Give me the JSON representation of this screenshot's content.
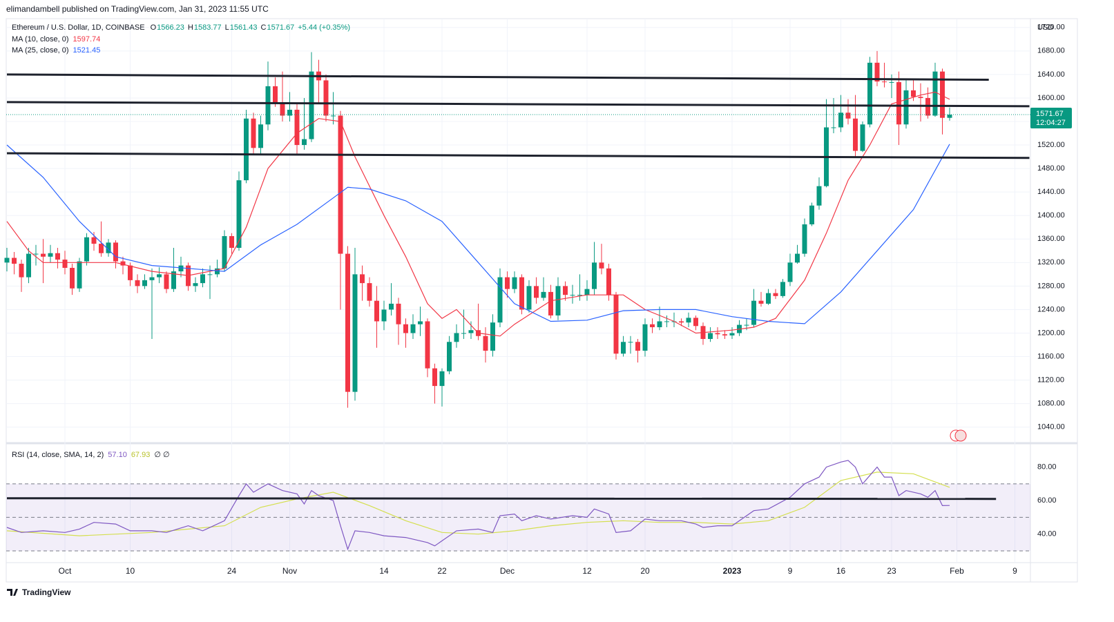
{
  "chart_data": {
    "type": "candlestick",
    "header": "elimandambell published on TradingView.com, Jan 31, 2023 11:55 UTC",
    "title": "Ethereum / U.S. Dollar, 1D, COINBASE",
    "ohlc_letters": [
      "O",
      "H",
      "L",
      "C"
    ],
    "change": "+5.44 (+0.35%)",
    "up_color": "#089981",
    "down_color": "#f23645",
    "open": [
      1320,
      1328,
      1318,
      1295,
      1335,
      1335,
      1330,
      1336,
      1325,
      1311,
      1276,
      1322,
      1363,
      1352,
      1336,
      1354,
      1322,
      1315,
      1290,
      1280,
      1290,
      1295,
      1300,
      1275,
      1305,
      1315,
      1280,
      1285,
      1300,
      1300,
      1310,
      1365,
      1345,
      1460,
      1565,
      1515,
      1555,
      1620,
      1590,
      1570,
      1580,
      1520,
      1530,
      1645,
      1630,
      1570,
      1570,
      1335,
      1100,
      1300,
      1285,
      1255,
      1220,
      1240,
      1250,
      1215,
      1200,
      1215,
      1220,
      1140,
      1110,
      1135,
      1185,
      1200,
      1200,
      1205,
      1195,
      1170,
      1218,
      1295,
      1275,
      1295,
      1240,
      1280,
      1260,
      1270,
      1230,
      1280,
      1265,
      1265,
      1265,
      1275,
      1320,
      1310,
      1265,
      1165,
      1185,
      1185,
      1170,
      1215,
      1210,
      1220,
      1220,
      1220,
      1218,
      1226,
      1212,
      1190,
      1200,
      1198,
      1196,
      1200,
      1214,
      1214,
      1255,
      1250,
      1268,
      1263,
      1287,
      1320,
      1335,
      1385,
      1417,
      1450,
      1550,
      1550,
      1575,
      1565,
      1510,
      1555,
      1660,
      1628,
      1627,
      1627,
      1555,
      1613,
      1602,
      1600,
      1570,
      1645,
      1566.23
    ],
    "high": [
      1345,
      1338,
      1325,
      1345,
      1350,
      1360,
      1350,
      1345,
      1340,
      1318,
      1328,
      1370,
      1372,
      1390,
      1360,
      1358,
      1330,
      1320,
      1300,
      1300,
      1310,
      1312,
      1305,
      1345,
      1330,
      1320,
      1295,
      1310,
      1315,
      1325,
      1375,
      1370,
      1475,
      1580,
      1575,
      1570,
      1662,
      1635,
      1645,
      1610,
      1590,
      1600,
      1678,
      1665,
      1640,
      1610,
      1578,
      1348,
      1345,
      1315,
      1295,
      1280,
      1255,
      1285,
      1260,
      1225,
      1232,
      1245,
      1225,
      1148,
      1140,
      1195,
      1215,
      1240,
      1220,
      1250,
      1210,
      1232,
      1310,
      1305,
      1305,
      1300,
      1290,
      1295,
      1295,
      1282,
      1295,
      1288,
      1282,
      1300,
      1290,
      1355,
      1352,
      1318,
      1270,
      1195,
      1195,
      1190,
      1225,
      1225,
      1245,
      1230,
      1235,
      1225,
      1235,
      1230,
      1218,
      1210,
      1210,
      1205,
      1210,
      1222,
      1225,
      1275,
      1270,
      1275,
      1275,
      1292,
      1335,
      1350,
      1395,
      1422,
      1465,
      1598,
      1600,
      1605,
      1598,
      1605,
      1560,
      1670,
      1680,
      1660,
      1640,
      1645,
      1630,
      1630,
      1625,
      1618,
      1660,
      1650,
      1583.77
    ],
    "low": [
      1305,
      1300,
      1270,
      1285,
      1315,
      1285,
      1320,
      1310,
      1300,
      1265,
      1270,
      1315,
      1340,
      1330,
      1330,
      1310,
      1300,
      1280,
      1268,
      1275,
      1190,
      1285,
      1268,
      1270,
      1295,
      1272,
      1270,
      1278,
      1258,
      1295,
      1305,
      1335,
      1340,
      1455,
      1505,
      1505,
      1545,
      1585,
      1560,
      1560,
      1505,
      1512,
      1525,
      1590,
      1560,
      1555,
      1240,
      1073,
      1085,
      1255,
      1245,
      1175,
      1205,
      1230,
      1180,
      1175,
      1190,
      1195,
      1125,
      1080,
      1075,
      1130,
      1175,
      1190,
      1190,
      1188,
      1150,
      1160,
      1210,
      1260,
      1268,
      1232,
      1235,
      1250,
      1255,
      1225,
      1222,
      1255,
      1250,
      1255,
      1255,
      1265,
      1300,
      1255,
      1155,
      1160,
      1165,
      1150,
      1160,
      1200,
      1205,
      1210,
      1210,
      1212,
      1210,
      1205,
      1180,
      1185,
      1190,
      1190,
      1190,
      1195,
      1205,
      1210,
      1245,
      1248,
      1258,
      1260,
      1280,
      1318,
      1330,
      1382,
      1410,
      1448,
      1540,
      1542,
      1555,
      1500,
      1508,
      1550,
      1620,
      1618,
      1600,
      1520,
      1548,
      1595,
      1560,
      1565,
      1568,
      1538,
      1561.43
    ],
    "close": [
      1328,
      1318,
      1295,
      1335,
      1335,
      1330,
      1336,
      1325,
      1311,
      1276,
      1322,
      1363,
      1352,
      1336,
      1354,
      1322,
      1315,
      1290,
      1280,
      1290,
      1295,
      1300,
      1275,
      1305,
      1315,
      1280,
      1285,
      1300,
      1300,
      1310,
      1365,
      1345,
      1460,
      1565,
      1515,
      1555,
      1620,
      1590,
      1570,
      1580,
      1520,
      1530,
      1645,
      1630,
      1570,
      1570,
      1335,
      1100,
      1300,
      1285,
      1255,
      1220,
      1240,
      1250,
      1215,
      1200,
      1215,
      1220,
      1140,
      1110,
      1135,
      1185,
      1200,
      1200,
      1205,
      1195,
      1170,
      1218,
      1295,
      1275,
      1295,
      1240,
      1280,
      1260,
      1270,
      1230,
      1280,
      1265,
      1265,
      1265,
      1275,
      1320,
      1310,
      1265,
      1165,
      1185,
      1185,
      1170,
      1215,
      1210,
      1220,
      1220,
      1220,
      1218,
      1226,
      1212,
      1190,
      1200,
      1198,
      1196,
      1200,
      1214,
      1214,
      1255,
      1250,
      1268,
      1263,
      1287,
      1320,
      1335,
      1385,
      1417,
      1450,
      1550,
      1550,
      1575,
      1565,
      1510,
      1555,
      1660,
      1628,
      1627,
      1627,
      1555,
      1613,
      1602,
      1600,
      1570,
      1645,
      1566.23,
      1571.67
    ],
    "ylim": [
      1015,
      1735
    ],
    "price_axis_label": "USD",
    "yticks": [
      {
        "value": 1040,
        "label": "1040.00"
      },
      {
        "value": 1080,
        "label": "1080.00"
      },
      {
        "value": 1120,
        "label": "1120.00"
      },
      {
        "value": 1160,
        "label": "1160.00"
      },
      {
        "value": 1200,
        "label": "1200.00"
      },
      {
        "value": 1240,
        "label": "1240.00"
      },
      {
        "value": 1280,
        "label": "1280.00"
      },
      {
        "value": 1320,
        "label": "1320.00"
      },
      {
        "value": 1360,
        "label": "1360.00"
      },
      {
        "value": 1400,
        "label": "1400.00"
      },
      {
        "value": 1440,
        "label": "1440.00"
      },
      {
        "value": 1480,
        "label": "1480.00"
      },
      {
        "value": 1520,
        "label": "1520.00"
      },
      {
        "value": 1560,
        "label": "1560.00"
      },
      {
        "value": 1600,
        "label": "1600.00"
      },
      {
        "value": 1640,
        "label": "1640.00"
      },
      {
        "value": 1680,
        "label": "1680.00"
      },
      {
        "value": 1720,
        "label": "1720.00"
      }
    ],
    "xticks": [
      {
        "value": 8,
        "label": "Oct"
      },
      {
        "value": 17,
        "label": "10"
      },
      {
        "value": 31,
        "label": "24"
      },
      {
        "value": 39,
        "label": "Nov"
      },
      {
        "value": 52,
        "label": "14"
      },
      {
        "value": 60,
        "label": "22"
      },
      {
        "value": 69,
        "label": "Dec"
      },
      {
        "value": 80,
        "label": "12"
      },
      {
        "value": 88,
        "label": "20"
      },
      {
        "value": 100,
        "label": "2023"
      },
      {
        "value": 108,
        "label": "9"
      },
      {
        "value": 115,
        "label": "16"
      },
      {
        "value": 122,
        "label": "23"
      },
      {
        "value": 131,
        "label": "Feb"
      },
      {
        "value": 139,
        "label": "9"
      }
    ],
    "price_tag": {
      "value": "1571.67",
      "countdown": "12:04:27"
    },
    "ma": [
      {
        "name": "MA (10, close, 0)",
        "value_label": "1597.74",
        "color": "#f23645",
        "x": [
          0,
          3,
          5,
          10,
          15,
          20,
          25,
          30,
          33,
          36,
          40,
          43,
          46,
          48,
          52,
          55,
          58,
          60,
          62,
          65,
          68,
          70,
          75,
          80,
          85,
          88,
          92,
          95,
          100,
          103,
          106,
          110,
          113,
          116,
          119,
          122,
          126,
          128,
          130
        ],
        "values": [
          1390,
          1340,
          1320,
          1320,
          1320,
          1305,
          1298,
          1310,
          1380,
          1480,
          1540,
          1565,
          1560,
          1500,
          1400,
          1330,
          1250,
          1225,
          1240,
          1200,
          1195,
          1215,
          1255,
          1265,
          1265,
          1240,
          1220,
          1200,
          1205,
          1210,
          1225,
          1290,
          1370,
          1460,
          1520,
          1590,
          1605,
          1610,
          1597.74
        ]
      },
      {
        "name": "MA (25, close, 0)",
        "value_label": "1521.45",
        "color": "#2962ff",
        "x": [
          0,
          5,
          10,
          15,
          20,
          25,
          30,
          35,
          40,
          45,
          47,
          50,
          55,
          60,
          65,
          70,
          75,
          80,
          85,
          90,
          95,
          100,
          105,
          110,
          115,
          120,
          125,
          130
        ],
        "values": [
          1520,
          1465,
          1390,
          1330,
          1315,
          1310,
          1305,
          1350,
          1385,
          1430,
          1448,
          1445,
          1425,
          1390,
          1320,
          1250,
          1220,
          1222,
          1238,
          1240,
          1240,
          1228,
          1220,
          1216,
          1270,
          1340,
          1410,
          1521.45
        ]
      }
    ],
    "levels": [
      {
        "x": [
          0,
          135.4
        ],
        "values": [
          1640,
          1631
        ]
      },
      {
        "x": [
          0,
          141
        ],
        "values": [
          1593,
          1586
        ]
      },
      {
        "x": [
          0,
          141
        ],
        "values": [
          1506,
          1498
        ]
      }
    ],
    "rsi": {
      "name": "RSI (14, close, SMA, 14, 2)",
      "value_label": "57.10",
      "sma_label": "67.93",
      "extra": "∅ ∅",
      "color": "#7e57c2",
      "sma_color": "#d4df4e",
      "ylim": [
        23,
        93
      ],
      "yticks": [
        {
          "value": 40,
          "label": "40.00"
        },
        {
          "value": 60,
          "label": "60.00"
        },
        {
          "value": 80,
          "label": "80.00"
        }
      ],
      "band": [
        30,
        70
      ],
      "mid": 50,
      "x": [
        0,
        2,
        5,
        8,
        10,
        12,
        15,
        17,
        20,
        22,
        25,
        27,
        30,
        32,
        33,
        34,
        36,
        38,
        40,
        41,
        42,
        43,
        45,
        46,
        47,
        48,
        50,
        52,
        55,
        58,
        59,
        60,
        62,
        65,
        67,
        68,
        70,
        71,
        73,
        75,
        78,
        80,
        81,
        83,
        84,
        86,
        88,
        90,
        93,
        95,
        96,
        98,
        100,
        103,
        105,
        108,
        110,
        112,
        113,
        115,
        116,
        117,
        118,
        119,
        120,
        121,
        122,
        123,
        124,
        126,
        127,
        128,
        129,
        130
      ],
      "values": [
        44,
        41,
        42,
        41,
        43,
        47,
        46,
        42,
        42,
        41,
        45,
        42,
        48,
        63,
        70,
        65,
        70,
        66,
        64,
        58,
        66,
        63,
        60,
        45,
        31,
        42,
        41,
        39,
        38,
        35,
        33,
        36,
        42,
        43,
        41,
        51,
        52,
        48,
        51,
        49,
        51,
        50,
        55,
        52,
        41,
        42,
        49,
        48,
        48,
        46,
        44,
        45,
        45,
        54,
        55,
        62,
        70,
        74,
        80,
        83,
        84,
        80,
        70,
        75,
        80,
        74,
        74,
        63,
        66,
        64,
        62,
        66,
        57,
        57.1
      ],
      "sma_x": [
        0,
        10,
        20,
        30,
        35,
        40,
        45,
        50,
        55,
        60,
        65,
        70,
        75,
        80,
        85,
        90,
        95,
        100,
        105,
        110,
        115,
        120,
        125,
        130
      ],
      "sma_values": [
        42,
        39,
        41,
        45,
        56,
        61,
        65,
        57,
        48,
        41,
        40,
        42,
        45,
        47,
        48,
        47,
        47,
        46,
        48,
        56,
        72,
        77,
        76,
        67.93
      ],
      "level": {
        "x": [
          0,
          136.4
        ],
        "values": [
          61.4,
          61
        ]
      }
    },
    "footer": "TradingView"
  }
}
